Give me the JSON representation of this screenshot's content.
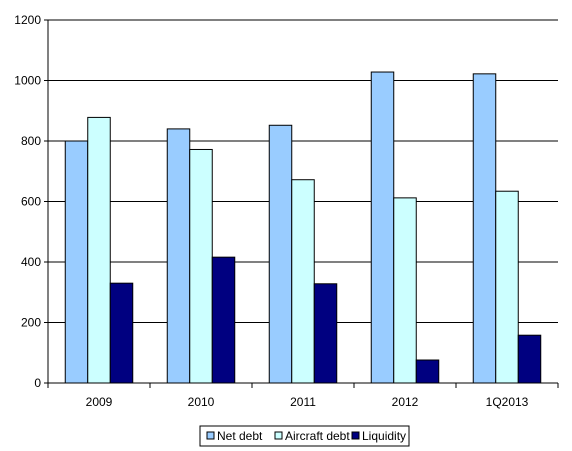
{
  "chart_data": {
    "type": "bar",
    "categories": [
      "2009",
      "2010",
      "2011",
      "2012",
      "1Q2013"
    ],
    "series": [
      {
        "name": "Net debt",
        "color": "#99ccff",
        "values": [
          800,
          840,
          852,
          1028,
          1022
        ]
      },
      {
        "name": "Aircraft debt",
        "color": "#ccffff",
        "values": [
          878,
          772,
          672,
          612,
          634
        ]
      },
      {
        "name": "Liquidity",
        "color": "#000080",
        "values": [
          330,
          416,
          328,
          76,
          158
        ]
      }
    ],
    "ylim": [
      0,
      1200
    ],
    "yticks": [
      0,
      200,
      400,
      600,
      800,
      1000,
      1200
    ],
    "grid": true,
    "legend_position": "bottom"
  }
}
